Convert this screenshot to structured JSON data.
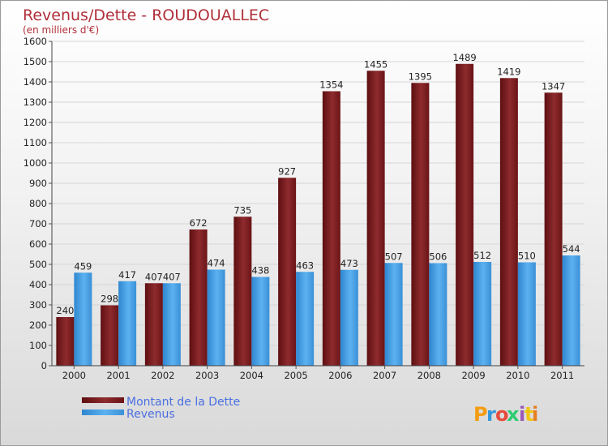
{
  "chart_data": {
    "type": "bar",
    "title": "Revenus/Dette - ROUDOUALLEC",
    "subtitle": "(en milliers d'€)",
    "categories": [
      "2000",
      "2001",
      "2002",
      "2003",
      "2004",
      "2005",
      "2006",
      "2007",
      "2008",
      "2009",
      "2010",
      "2011"
    ],
    "series": [
      {
        "name": "Montant de la Dette",
        "color": "#7a1e1e",
        "values": [
          240,
          298,
          407,
          672,
          735,
          927,
          1354,
          1455,
          1395,
          1489,
          1419,
          1347
        ]
      },
      {
        "name": "Revenus",
        "color": "#4ba3e6",
        "values": [
          459,
          417,
          407,
          474,
          438,
          463,
          473,
          507,
          506,
          512,
          510,
          544
        ]
      }
    ],
    "ylim": [
      0,
      1600
    ],
    "yticks": [
      0,
      100,
      200,
      300,
      400,
      500,
      600,
      700,
      800,
      900,
      1000,
      1100,
      1200,
      1300,
      1400,
      1500,
      1600
    ],
    "grid": true,
    "legend": "bottom-left"
  },
  "brand": {
    "letters": [
      "P",
      "r",
      "o",
      "x",
      "i",
      "t",
      "i"
    ],
    "colors": [
      "#f39c12",
      "#3498db",
      "#e74c3c",
      "#2ecc71",
      "#9b59b6",
      "#f1c40f",
      "#e67e22"
    ]
  }
}
